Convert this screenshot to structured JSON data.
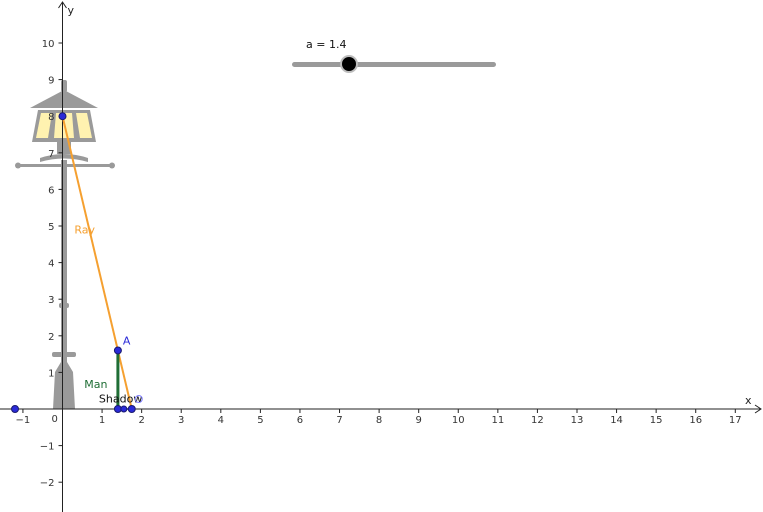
{
  "slider": {
    "label": "a = 1.4",
    "name": "a",
    "value": 1.4,
    "min": 0,
    "max": 5
  },
  "axes": {
    "x_label": "x",
    "y_label": "y",
    "x_ticks": [
      -1,
      0,
      1,
      2,
      3,
      4,
      5,
      6,
      7,
      8,
      9,
      10,
      11,
      12,
      13,
      14,
      15,
      16,
      17
    ],
    "y_ticks": [
      -2,
      -1,
      1,
      2,
      3,
      4,
      5,
      6,
      7,
      8,
      9,
      10
    ],
    "grid": false
  },
  "objects": {
    "ray_label": "Ray",
    "man_label": "Man",
    "shadow_label": "Shadow",
    "point_a_label": "A",
    "colors": {
      "ray": "#f5a030",
      "man": "#1f6e35",
      "shadow": "#4d5d9e",
      "point": "#2a2ad8",
      "lamp": "#9a9a9a",
      "lamp_glass": "#fff2b0"
    }
  },
  "chart_data": {
    "type": "diagram",
    "lamp_point": [
      0,
      8
    ],
    "point_A": [
      1.4,
      1.6
    ],
    "man": {
      "x": 1.4,
      "from_y": 0,
      "to_y": 1.6
    },
    "shadow": {
      "from_x": 1.4,
      "to_x": 1.75
    },
    "ray": {
      "from": [
        0,
        8
      ],
      "through": [
        1.4,
        1.6
      ],
      "ends_at": [
        1.75,
        0
      ]
    },
    "extra_point": [
      -1.2,
      0
    ],
    "xlim": [
      -1.4,
      18
    ],
    "ylim": [
      -2.8,
      11.2
    ]
  }
}
